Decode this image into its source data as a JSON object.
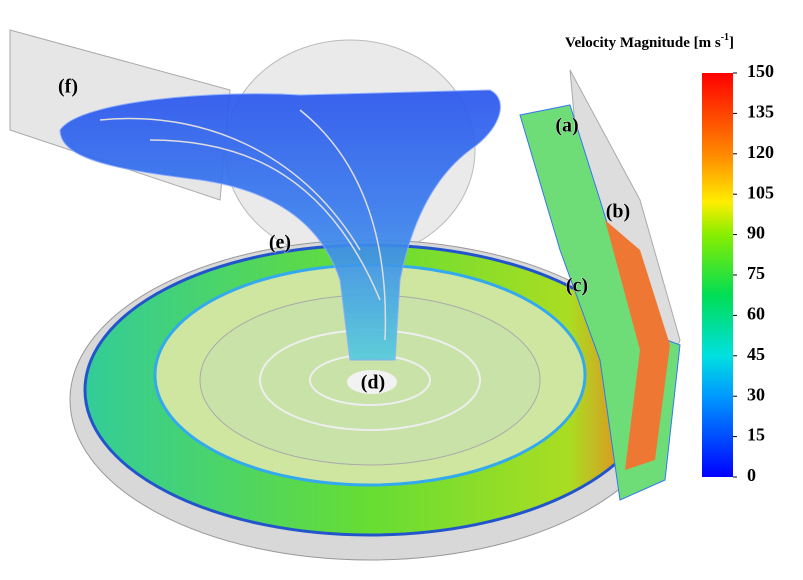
{
  "figure": {
    "labels": [
      "(a)",
      "(b)",
      "(c)",
      "(d)",
      "(e)",
      "(f)"
    ],
    "colorbar": {
      "title": "Velocity Magnitude [m s",
      "title_superscript": "-1",
      "title_end": "]",
      "lim": [
        0,
        150
      ],
      "ticks": [
        0,
        15,
        30,
        45,
        60,
        75,
        90,
        105,
        120,
        135,
        150
      ]
    }
  }
}
